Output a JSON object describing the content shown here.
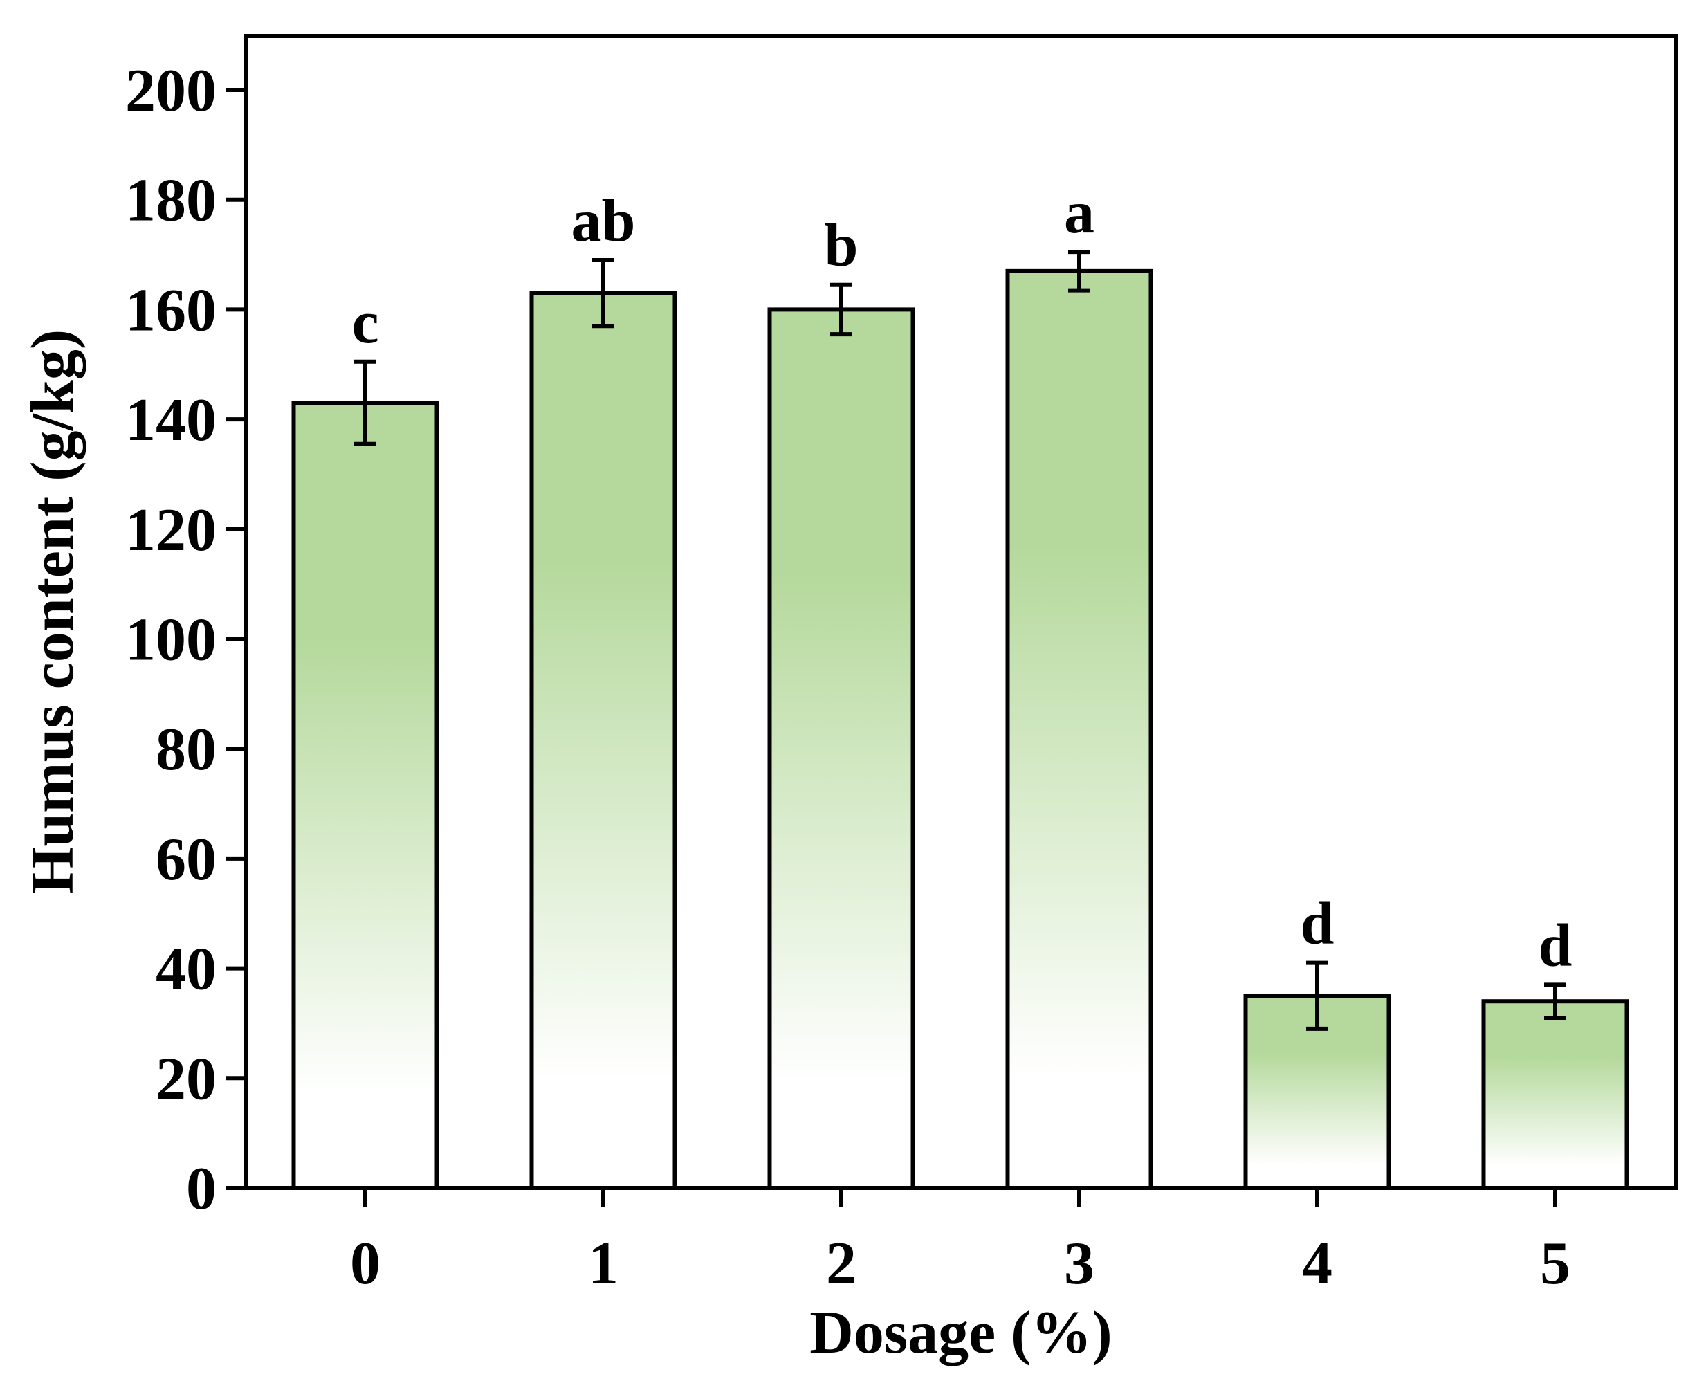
{
  "chart_data": {
    "type": "bar",
    "title": "",
    "xlabel": "Dosage (%)",
    "ylabel": "Humus content (g/kg)",
    "categories": [
      "0",
      "1",
      "2",
      "3",
      "4",
      "5"
    ],
    "values": [
      143,
      163,
      160,
      167,
      35,
      34
    ],
    "errors": [
      7.5,
      6,
      4.5,
      3.5,
      6,
      3
    ],
    "significance_letters": [
      "c",
      "ab",
      "b",
      "a",
      "d",
      "d"
    ],
    "ylim": [
      0,
      210
    ],
    "yticks": [
      0,
      20,
      40,
      60,
      80,
      100,
      120,
      140,
      160,
      180,
      200
    ],
    "grid": false,
    "legend": "none",
    "colors": {
      "bar_top": "#b5d99c",
      "bar_bottom": "#ffffff",
      "outline": "#000000",
      "background": "#ffffff"
    }
  }
}
